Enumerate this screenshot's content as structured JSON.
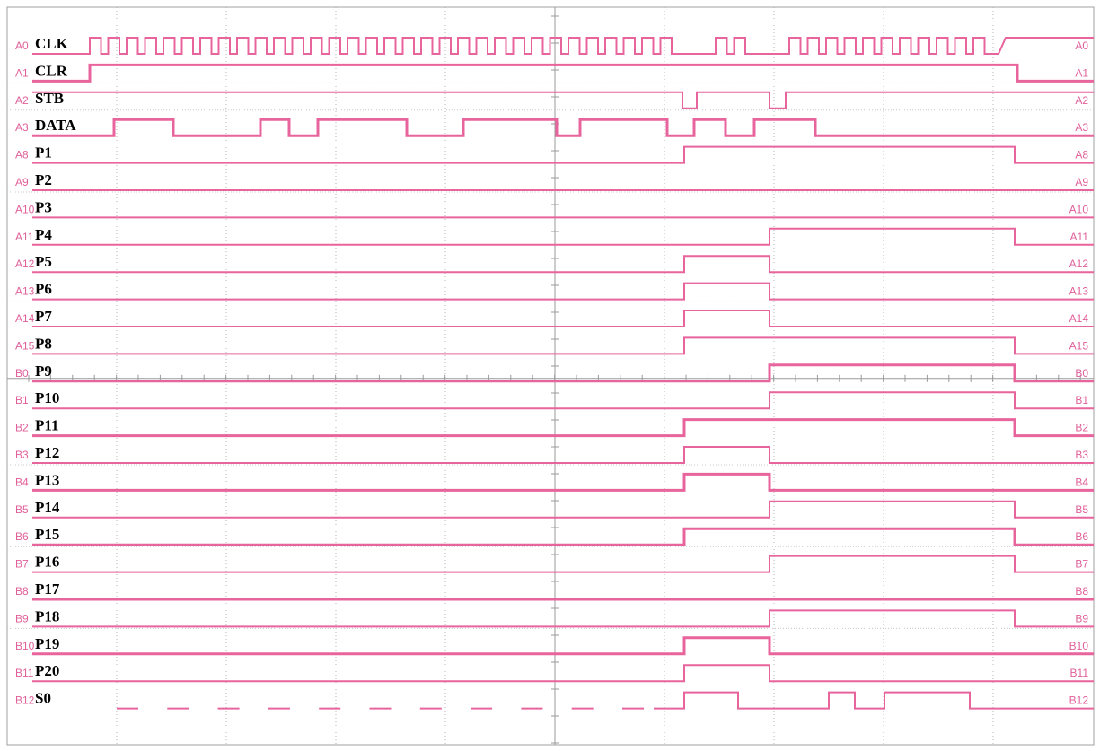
{
  "view": {
    "time_start": 0,
    "time_end": 1225
  },
  "colors": {
    "trace": "#e8649c",
    "channel_label": "#e0609a",
    "grid": "#b4b4b4",
    "frame": "#a0a0a0",
    "signal_label": "#000000"
  },
  "channels": [
    {
      "ch": "A0",
      "name": "CLK",
      "clock": {
        "start": 100,
        "end": 1112,
        "period": 20.5,
        "high": 12.5
      },
      "gaps": [
        [
          753,
          780
        ],
        [
          835,
          860
        ]
      ],
      "final_high": true
    },
    {
      "ch": "A1",
      "name": "CLR",
      "init": 0,
      "edges": [
        100,
        1133
      ],
      "bold": true
    },
    {
      "ch": "A2",
      "name": "STB",
      "init": 1,
      "edges": [
        760,
        776,
        857,
        875
      ]
    },
    {
      "ch": "A3",
      "name": "DATA",
      "init": 0,
      "edges": [
        127,
        193,
        290,
        322,
        354,
        453,
        516,
        620,
        646,
        743,
        773,
        808,
        840,
        908
      ],
      "bold": true
    },
    {
      "ch": "A8",
      "name": "P1",
      "init": 0,
      "edges": [
        762,
        1130
      ]
    },
    {
      "ch": "A9",
      "name": "P2",
      "init": 0,
      "edges": []
    },
    {
      "ch": "A10",
      "name": "P3",
      "init": 0,
      "edges": []
    },
    {
      "ch": "A11",
      "name": "P4",
      "init": 0,
      "edges": [
        857,
        1130
      ]
    },
    {
      "ch": "A12",
      "name": "P5",
      "init": 0,
      "edges": [
        762,
        857
      ]
    },
    {
      "ch": "A13",
      "name": "P6",
      "init": 0,
      "edges": [
        762,
        857
      ]
    },
    {
      "ch": "A14",
      "name": "P7",
      "init": 0,
      "edges": [
        762,
        857
      ]
    },
    {
      "ch": "A15",
      "name": "P8",
      "init": 0,
      "edges": [
        762,
        1130
      ]
    },
    {
      "ch": "B0",
      "name": "P9",
      "init": 0,
      "edges": [
        857,
        1130
      ],
      "bold": true
    },
    {
      "ch": "B1",
      "name": "P10",
      "init": 0,
      "edges": [
        857,
        1130
      ]
    },
    {
      "ch": "B2",
      "name": "P11",
      "init": 0,
      "edges": [
        762,
        1130
      ],
      "bold": true
    },
    {
      "ch": "B3",
      "name": "P12",
      "init": 0,
      "edges": [
        762,
        857
      ]
    },
    {
      "ch": "B4",
      "name": "P13",
      "init": 0,
      "edges": [
        762,
        857
      ],
      "bold": true
    },
    {
      "ch": "B5",
      "name": "P14",
      "init": 0,
      "edges": [
        857,
        1130
      ]
    },
    {
      "ch": "B6",
      "name": "P15",
      "init": 0,
      "edges": [
        762,
        1130
      ],
      "bold": true
    },
    {
      "ch": "B7",
      "name": "P16",
      "init": 0,
      "edges": [
        857,
        1130
      ]
    },
    {
      "ch": "B8",
      "name": "P17",
      "init": 0,
      "edges": [],
      "bold": true
    },
    {
      "ch": "B9",
      "name": "P18",
      "init": 0,
      "edges": [
        857,
        1130
      ]
    },
    {
      "ch": "B10",
      "name": "P19",
      "init": 0,
      "edges": [
        762,
        857
      ],
      "bold": true
    },
    {
      "ch": "B11",
      "name": "P20",
      "init": 0,
      "edges": [
        762,
        857
      ]
    },
    {
      "ch": "B12",
      "name": "S0",
      "init": 0,
      "edges": [
        762,
        822,
        923,
        952,
        985,
        1080
      ],
      "dashed_until": 728
    }
  ]
}
